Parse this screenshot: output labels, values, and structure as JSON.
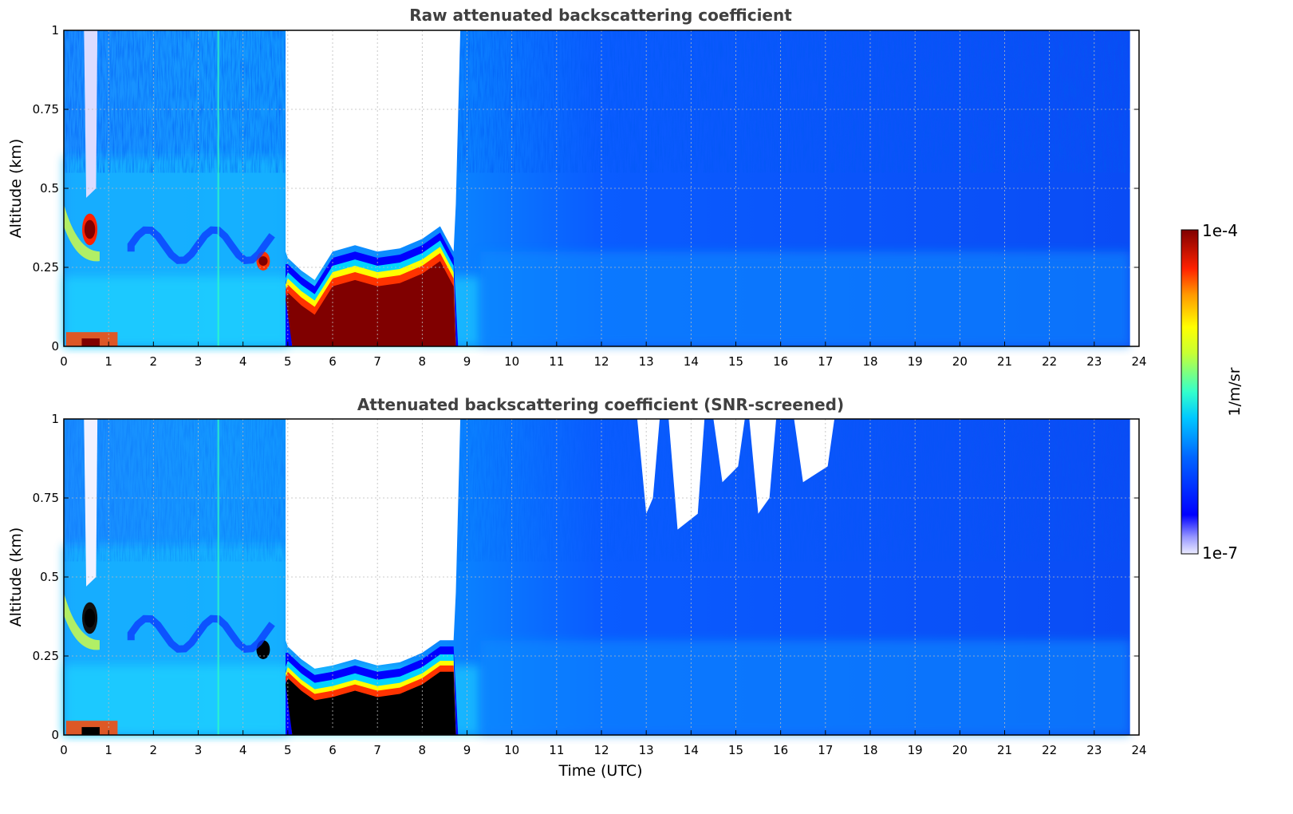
{
  "chart_data": [
    {
      "type": "heatmap",
      "title": "Raw attenuated backscattering coefficient",
      "xlabel": "",
      "ylabel": "Altitude (km)",
      "xlim": [
        0,
        24
      ],
      "ylim": [
        0,
        1
      ],
      "x_ticks": [
        "0",
        "1",
        "2",
        "3",
        "4",
        "5",
        "6",
        "7",
        "8",
        "9",
        "10",
        "11",
        "12",
        "13",
        "14",
        "15",
        "16",
        "17",
        "18",
        "19",
        "20",
        "21",
        "22",
        "23",
        "24"
      ],
      "y_ticks": [
        "0",
        "0.25",
        "0.5",
        "0.75",
        "1"
      ],
      "grid": true,
      "data_end_time": 23.8,
      "features": [
        {
          "name": "fog/low cloud layer",
          "t_start": 4.95,
          "t_end": 8.8,
          "alt_bottom": 0.0,
          "alt_top": 0.2,
          "level": "~1e-4 (saturated)"
        },
        {
          "name": "signal extinction above cloud",
          "t_start": 5.0,
          "t_end": 8.7,
          "alt_bottom": 0.3,
          "alt_top": 1.0,
          "level": "below 1e-7"
        },
        {
          "name": "elevated layer near 0.35 km",
          "t_start": 0.35,
          "t_end": 0.75,
          "alt_bottom": 0.32,
          "alt_top": 0.42,
          "level": "~1e-4"
        },
        {
          "name": "small layer near 0.27 km",
          "t_start": 4.3,
          "t_end": 4.6,
          "alt_bottom": 0.24,
          "alt_top": 0.3,
          "level": "~1e-4"
        },
        {
          "name": "near-surface aerosol",
          "t_start": 0,
          "t_end": 1.2,
          "alt_bottom": 0.0,
          "alt_top": 0.05,
          "level": "~1e-5 to 1e-4"
        },
        {
          "name": "clean background",
          "t_start": 9.5,
          "t_end": 23.8,
          "alt_bottom": 0.0,
          "alt_top": 1.0,
          "level": "~1e-6"
        }
      ]
    },
    {
      "type": "heatmap",
      "title": "Attenuated backscattering coefficient (SNR-screened)",
      "xlabel": "Time (UTC)",
      "ylabel": "Altitude (km)",
      "xlim": [
        0,
        24
      ],
      "ylim": [
        0,
        1
      ],
      "x_ticks": [
        "0",
        "1",
        "2",
        "3",
        "4",
        "5",
        "6",
        "7",
        "8",
        "9",
        "10",
        "11",
        "12",
        "13",
        "14",
        "15",
        "16",
        "17",
        "18",
        "19",
        "20",
        "21",
        "22",
        "23",
        "24"
      ],
      "y_ticks": [
        "0",
        "0.25",
        "0.5",
        "0.75",
        "1"
      ],
      "grid": true,
      "data_end_time": 23.8,
      "features": [
        {
          "name": "fog/low cloud layer",
          "t_start": 4.95,
          "t_end": 8.8,
          "alt_bottom": 0.0,
          "alt_top": 0.2,
          "level": "saturated (black)"
        },
        {
          "name": "screened-out region above cloud",
          "t_start": 5.0,
          "t_end": 8.8,
          "alt_bottom": 0.25,
          "alt_top": 1.0,
          "level": "masked"
        },
        {
          "name": "screened-out gaps aloft",
          "t_start": 12.8,
          "t_end": 17.2,
          "alt_bottom": 0.7,
          "alt_top": 1.0,
          "level": "masked"
        },
        {
          "name": "clean background",
          "t_start": 9.5,
          "t_end": 23.8,
          "alt_bottom": 0.0,
          "alt_top": 1.0,
          "level": "~1e-6"
        }
      ]
    }
  ],
  "colorbar": {
    "label": "1/m/sr",
    "max_label": "1e-4",
    "min_label": "1e-7",
    "colormap": "jet",
    "scale": "log"
  },
  "colors": {
    "high": "#800000",
    "low": "#ececff",
    "saturated_screened": "#000000"
  }
}
